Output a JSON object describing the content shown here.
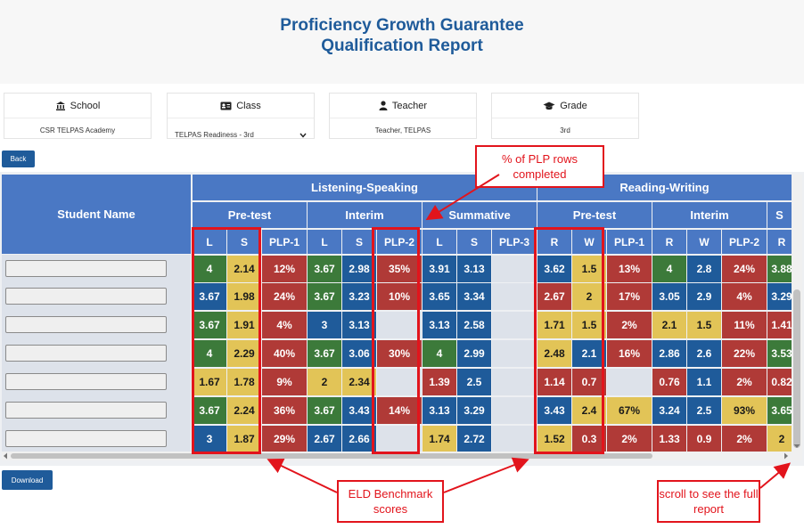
{
  "title_line1": "Proficiency Growth Guarantee",
  "title_line2": "Qualification Report",
  "filters": [
    {
      "label": "School",
      "icon": "bank-icon",
      "value": "CSR TELPAS Academy"
    },
    {
      "label": "Class",
      "icon": "id-card-icon",
      "value": "TELPAS Readiness - 3rd"
    },
    {
      "label": "Teacher",
      "icon": "user-icon",
      "value": "Teacher, TELPAS"
    },
    {
      "label": "Grade",
      "icon": "graduation-cap-icon",
      "value": "3rd"
    }
  ],
  "back_label": "Back",
  "download_label": "Download",
  "student_name_header": "Student Name",
  "groups": [
    "Listening-Speaking",
    "Reading-Writing"
  ],
  "subgroups": [
    "Pre-test",
    "Interim",
    "Summative",
    "Pre-test",
    "Interim",
    "S"
  ],
  "columns": [
    "L",
    "S",
    "PLP-1",
    "L",
    "S",
    "PLP-2",
    "L",
    "S",
    "PLP-3",
    "R",
    "W",
    "PLP-1",
    "R",
    "W",
    "PLP-2",
    "R"
  ],
  "rows": [
    [
      "4",
      "2.14",
      "12%",
      "3.67",
      "2.98",
      "35%",
      "3.91",
      "3.13",
      "",
      "3.62",
      "1.5",
      "13%",
      "4",
      "2.8",
      "24%",
      "3.88"
    ],
    [
      "3.67",
      "1.98",
      "24%",
      "3.67",
      "3.23",
      "10%",
      "3.65",
      "3.34",
      "",
      "2.67",
      "2",
      "17%",
      "3.05",
      "2.9",
      "4%",
      "3.29"
    ],
    [
      "3.67",
      "1.91",
      "4%",
      "3",
      "3.13",
      "",
      "3.13",
      "2.58",
      "",
      "1.71",
      "1.5",
      "2%",
      "2.1",
      "1.5",
      "11%",
      "1.41"
    ],
    [
      "4",
      "2.29",
      "40%",
      "3.67",
      "3.06",
      "30%",
      "4",
      "2.99",
      "",
      "2.48",
      "2.1",
      "16%",
      "2.86",
      "2.6",
      "22%",
      "3.53"
    ],
    [
      "1.67",
      "1.78",
      "9%",
      "2",
      "2.34",
      "",
      "1.39",
      "2.5",
      "",
      "1.14",
      "0.7",
      "",
      "0.76",
      "1.1",
      "2%",
      "0.82"
    ],
    [
      "3.67",
      "2.24",
      "36%",
      "3.67",
      "3.43",
      "14%",
      "3.13",
      "3.29",
      "",
      "3.43",
      "2.4",
      "67%",
      "3.24",
      "2.5",
      "93%",
      "3.65"
    ],
    [
      "3",
      "1.87",
      "29%",
      "2.67",
      "2.66",
      "",
      "1.74",
      "2.72",
      "",
      "1.52",
      "0.3",
      "2%",
      "1.33",
      "0.9",
      "2%",
      "2"
    ]
  ],
  "colors": [
    [
      "g",
      "y",
      "r",
      "g",
      "b",
      "r",
      "b",
      "b",
      "e",
      "b",
      "y",
      "r",
      "g",
      "b",
      "r",
      "g"
    ],
    [
      "b",
      "y",
      "r",
      "g",
      "b",
      "r",
      "b",
      "b",
      "e",
      "r",
      "y",
      "r",
      "b",
      "b",
      "r",
      "b"
    ],
    [
      "g",
      "y",
      "r",
      "b",
      "b",
      "e",
      "b",
      "b",
      "e",
      "y",
      "y",
      "r",
      "y",
      "y",
      "r",
      "r"
    ],
    [
      "g",
      "y",
      "r",
      "g",
      "b",
      "r",
      "g",
      "b",
      "e",
      "y",
      "b",
      "r",
      "b",
      "b",
      "r",
      "g"
    ],
    [
      "y",
      "y",
      "r",
      "y",
      "y",
      "e",
      "r",
      "b",
      "e",
      "r",
      "r",
      "e",
      "r",
      "b",
      "r",
      "r"
    ],
    [
      "g",
      "y",
      "r",
      "g",
      "b",
      "r",
      "b",
      "b",
      "e",
      "b",
      "y",
      "y",
      "b",
      "b",
      "y",
      "g"
    ],
    [
      "b",
      "y",
      "r",
      "b",
      "b",
      "e",
      "y",
      "b",
      "e",
      "y",
      "r",
      "r",
      "r",
      "r",
      "r",
      "y"
    ]
  ],
  "palette": {
    "g": "#3c7a3a",
    "y": "#e2c457",
    "r": "#b03a37",
    "b": "#1f5b9a",
    "e": "#dde2ea"
  },
  "callouts": {
    "plp": "% of PLP rows completed",
    "eld": "ELD Benchmark scores",
    "scroll": "scroll to see the full report"
  }
}
